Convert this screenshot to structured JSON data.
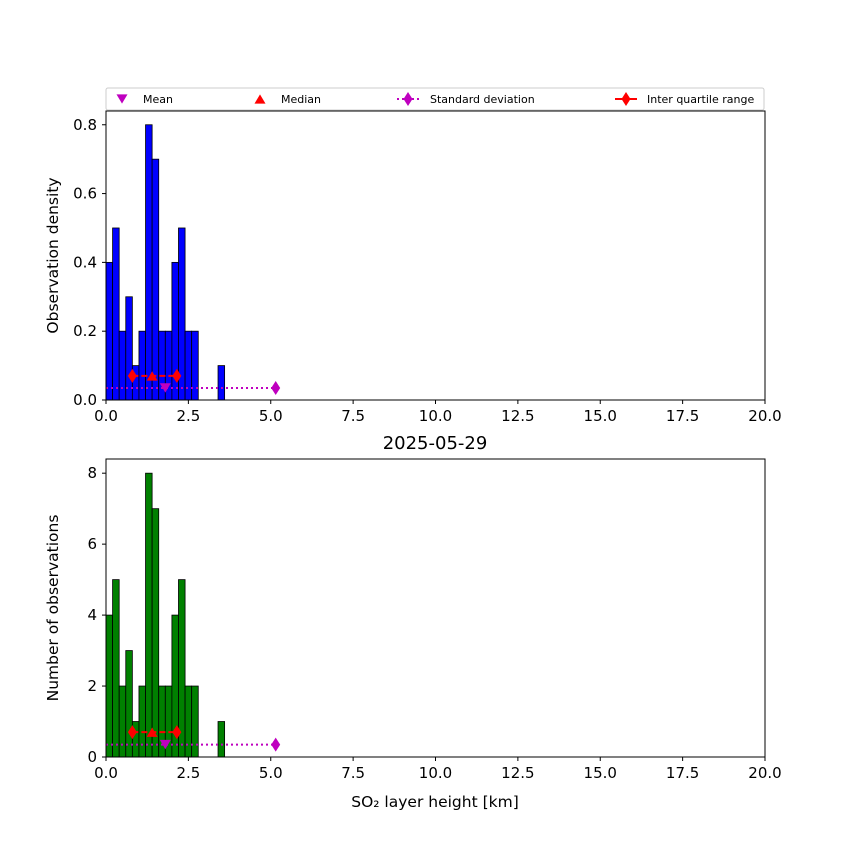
{
  "chart_data": {
    "type": "bar",
    "title": "2025-05-29",
    "xlabel": "SO₂ layer height [km]",
    "bin_width_km": 0.2,
    "bin_starts_km": [
      0.0,
      0.2,
      0.4,
      0.6,
      0.8,
      1.0,
      1.2,
      1.4,
      1.6,
      1.8,
      2.0,
      2.2,
      2.4,
      2.6,
      3.4
    ],
    "counts": [
      4,
      5,
      2,
      3,
      1,
      2,
      8,
      7,
      2,
      2,
      4,
      5,
      2,
      2,
      1
    ],
    "density": [
      0.4,
      0.5,
      0.2,
      0.3,
      0.1,
      0.2,
      0.8,
      0.7,
      0.2,
      0.2,
      0.4,
      0.5,
      0.2,
      0.2,
      0.1
    ],
    "xlim": [
      0,
      20
    ],
    "xticks": [
      "0.0",
      "2.5",
      "5.0",
      "7.5",
      "10.0",
      "12.5",
      "15.0",
      "17.5",
      "20.0"
    ],
    "statistics": {
      "mean": 1.8,
      "median": 1.4,
      "std_dev_range": [
        0.0,
        5.15
      ],
      "inter_quartile_range": [
        0.8,
        2.15
      ]
    },
    "legend": {
      "placement": "top, above upper plot",
      "entries": [
        {
          "key": "mean",
          "label": "Mean",
          "color": "#bf00bf",
          "marker": "triangle-down"
        },
        {
          "key": "median",
          "label": "Median",
          "color": "#ff0000",
          "marker": "triangle-up"
        },
        {
          "key": "std",
          "label": "Standard deviation",
          "color": "#bf00bf",
          "marker": "diamond",
          "line": "dotted"
        },
        {
          "key": "iqr",
          "label": "Inter quartile range",
          "color": "#ff0000",
          "marker": "diamond",
          "line": "solid"
        }
      ]
    },
    "panels": [
      {
        "name": "density-panel",
        "ylabel": "Observation density",
        "ylim": [
          0,
          0.84
        ],
        "yticks": [
          "0.0",
          "0.2",
          "0.4",
          "0.6",
          "0.8"
        ],
        "ytick_values": [
          0,
          0.2,
          0.4,
          0.6,
          0.8
        ],
        "series_key": "density",
        "bar_color": "#0000ff",
        "stat_marker_level": 0.035,
        "iqr_marker_level": 0.07
      },
      {
        "name": "count-panel",
        "ylabel": "Number of observations",
        "ylim": [
          0,
          8.4
        ],
        "yticks": [
          "0",
          "2",
          "4",
          "6",
          "8"
        ],
        "ytick_values": [
          0,
          2,
          4,
          6,
          8
        ],
        "series_key": "counts",
        "bar_color": "#008000",
        "stat_marker_level": 0.35,
        "iqr_marker_level": 0.7
      }
    ]
  }
}
